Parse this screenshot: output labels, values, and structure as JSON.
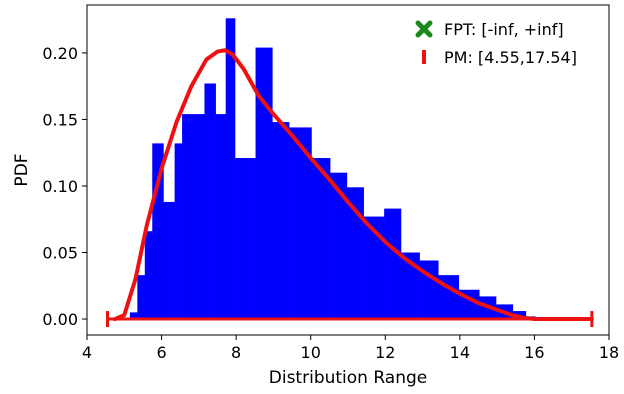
{
  "chart_data": {
    "type": "bar",
    "xlabel": "Distribution Range",
    "ylabel": "PDF",
    "xlim": [
      4,
      18
    ],
    "ylim": [
      -0.012,
      0.236
    ],
    "xticks": [
      4,
      6,
      8,
      10,
      12,
      14,
      16,
      18
    ],
    "yticks": [
      0.0,
      0.05,
      0.1,
      0.15,
      0.2
    ],
    "ytick_labels": [
      "0.00",
      "0.05",
      "0.10",
      "0.15",
      "0.20"
    ],
    "grid": false,
    "legend_position": "top-right",
    "histogram": {
      "color": "#0000ff",
      "bin_edges": [
        5.15,
        5.35,
        5.55,
        5.75,
        6.05,
        6.35,
        6.55,
        6.85,
        7.15,
        7.45,
        7.72,
        7.97,
        8.52,
        8.97,
        9.42,
        10.02,
        10.52,
        10.97,
        11.42,
        11.97,
        12.42,
        12.92,
        13.42,
        13.97,
        14.52,
        14.97,
        15.42,
        15.77,
        16.02
      ],
      "values": [
        0.005,
        0.033,
        0.066,
        0.132,
        0.088,
        0.132,
        0.154,
        0.154,
        0.177,
        0.154,
        0.226,
        0.121,
        0.204,
        0.148,
        0.144,
        0.121,
        0.11,
        0.099,
        0.077,
        0.083,
        0.05,
        0.044,
        0.033,
        0.022,
        0.017,
        0.011,
        0.006,
        0.002
      ]
    },
    "series": [
      {
        "name": "PM: [4.55,17.54]",
        "type": "line",
        "color": "#ee1111",
        "x": [
          4.75,
          5.0,
          5.3,
          5.6,
          6.0,
          6.4,
          6.8,
          7.2,
          7.5,
          7.7,
          7.9,
          8.2,
          8.6,
          9.0,
          9.5,
          10.0,
          10.5,
          11.0,
          11.5,
          12.0,
          12.5,
          13.0,
          13.5,
          14.0,
          14.5,
          15.0,
          15.4,
          15.7,
          16.0,
          16.4,
          16.8,
          17.2,
          17.54
        ],
        "y": [
          0.0,
          0.003,
          0.03,
          0.07,
          0.113,
          0.148,
          0.175,
          0.195,
          0.201,
          0.202,
          0.199,
          0.188,
          0.168,
          0.154,
          0.138,
          0.121,
          0.105,
          0.088,
          0.072,
          0.058,
          0.046,
          0.036,
          0.027,
          0.019,
          0.012,
          0.007,
          0.003,
          0.001,
          0.0,
          0.0,
          0.0,
          0.0,
          0.0
        ]
      }
    ],
    "interval_markers": {
      "color": "#ee1111",
      "x": [
        4.55,
        17.54
      ],
      "y": 0.0
    },
    "legend": [
      {
        "label": "FPT: [-inf, +inf]",
        "marker": "x",
        "color": "#1a8a1a"
      },
      {
        "label": "PM: [4.55,17.54]",
        "marker": "vbar",
        "color": "#ee1111"
      }
    ]
  }
}
